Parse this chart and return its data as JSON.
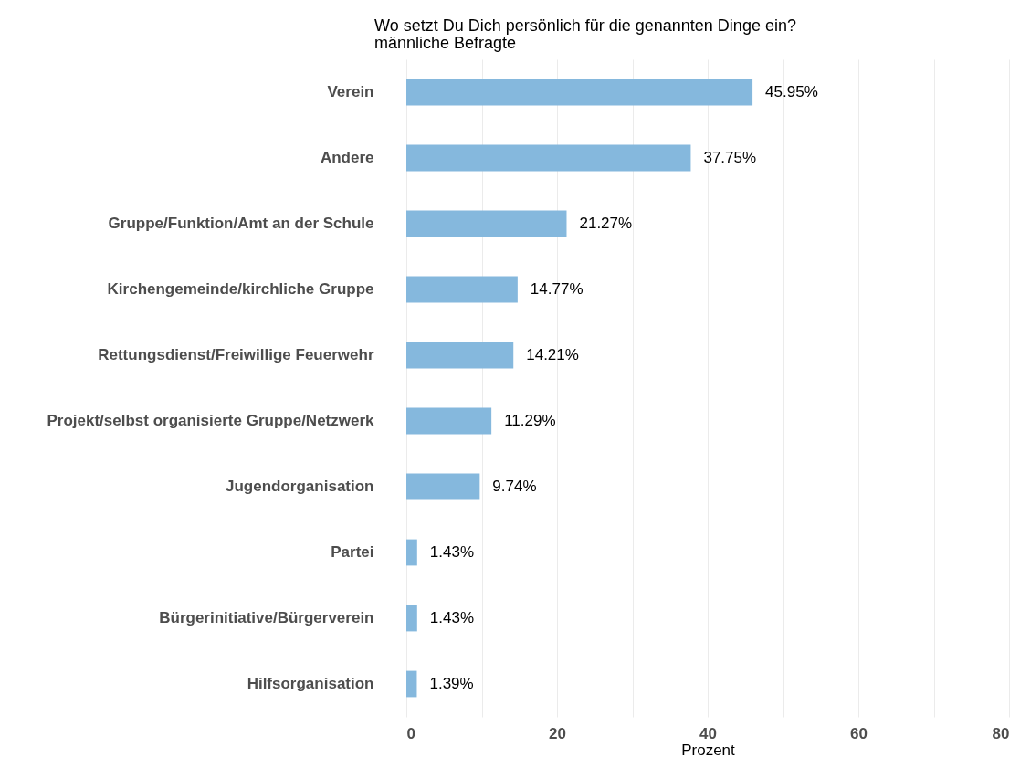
{
  "chart_data": {
    "type": "bar",
    "orientation": "horizontal",
    "title": "Wo setzt Du Dich persönlich für die genannten Dinge ein?",
    "subtitle": "männliche Befragte",
    "xlabel": "Prozent",
    "categories": [
      "Verein",
      "Andere",
      "Gruppe/Funktion/Amt an der Schule",
      "Kirchengemeinde/kirchliche Gruppe",
      "Rettungsdienst/Freiwillige Feuerwehr",
      "Projekt/selbst organisierte Gruppe/Netzwerk",
      "Jugendorganisation",
      "Partei",
      "Bürgerinitiative/Bürgerverein",
      "Hilfsorganisation"
    ],
    "values": [
      45.95,
      37.75,
      21.27,
      14.77,
      14.21,
      11.29,
      9.74,
      1.43,
      1.43,
      1.39
    ],
    "value_labels": [
      "45.95%",
      "37.75%",
      "21.27%",
      "14.77%",
      "14.21%",
      "11.29%",
      "9.74%",
      "1.43%",
      "1.43%",
      "1.39%"
    ],
    "color": "#85b8dd",
    "xlim": [
      0,
      80
    ],
    "xticks": [
      0,
      {
        "value": 10,
        "label": null
      },
      20,
      {
        "value": 30,
        "label": null
      },
      40,
      {
        "value": 50,
        "label": null
      },
      60,
      {
        "value": 70,
        "label": null
      },
      80
    ],
    "grid": "x"
  }
}
